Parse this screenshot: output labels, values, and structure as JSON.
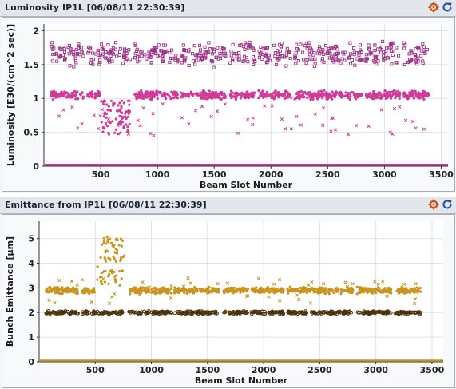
{
  "panels": [
    {
      "title": "Luminosity IP1L [06/08/11 22:30:39]",
      "icons": [
        "settings-icon",
        "refresh-icon"
      ]
    },
    {
      "title": "Emittance from IP1L [06/08/11 22:30:39]",
      "icons": [
        "settings-icon",
        "refresh-icon"
      ]
    }
  ],
  "chart_data": [
    {
      "type": "scatter",
      "title": "",
      "xlabel": "Beam Slot Number",
      "ylabel": "Luminosity [E30/(cm^2 sec)]",
      "xlim": [
        0,
        3560
      ],
      "ylim": [
        0,
        2.1
      ],
      "xticks": [
        500,
        1000,
        1500,
        2000,
        2500,
        3000,
        3500
      ],
      "yticks": [
        0,
        0.5,
        1,
        1.5,
        2
      ],
      "ytick_labels": [
        "0",
        "0.5",
        "1",
        "1.5",
        "2"
      ],
      "color": "#d03a9a",
      "marker_color": "#9c2f86",
      "trains": [
        [
          60,
          350
        ],
        [
          380,
          760
        ],
        [
          800,
          1180
        ],
        [
          1200,
          1600
        ],
        [
          1640,
          1860
        ],
        [
          1890,
          2180
        ],
        [
          2210,
          2470
        ],
        [
          2480,
          2800
        ],
        [
          2830,
          3140
        ],
        [
          3170,
          3400
        ]
      ],
      "series": [
        {
          "name": "",
          "band_center": 1.05,
          "band_halfwidth": 0.07,
          "marker": "dot"
        },
        {
          "name": "",
          "band_center": 1.65,
          "band_halfwidth": 0.2,
          "marker": "square"
        },
        {
          "name": "",
          "scatter_range": [
            0.45,
            0.92
          ],
          "marker": "x"
        }
      ],
      "special": {
        "x_range": [
          500,
          760
        ],
        "center": 0.72,
        "halfwidth": 0.25
      },
      "baseline": 0.02,
      "grid": true,
      "legend": "none"
    },
    {
      "type": "scatter",
      "title": "",
      "xlabel": "Beam Slot Number",
      "ylabel": "Bunch Emittance [µm]",
      "xlim": [
        0,
        3600
      ],
      "ylim": [
        0,
        5.7
      ],
      "xticks": [
        500,
        1000,
        1500,
        2000,
        2500,
        3000,
        3500
      ],
      "yticks": [
        0,
        1,
        2,
        3,
        4,
        5
      ],
      "ytick_labels": [
        "0",
        "1",
        "2",
        "3",
        "4",
        "5"
      ],
      "color": "#c99420",
      "marker_color": "#4a3208",
      "trains": [
        [
          60,
          350
        ],
        [
          380,
          760
        ],
        [
          800,
          1180
        ],
        [
          1200,
          1600
        ],
        [
          1640,
          1860
        ],
        [
          1890,
          2180
        ],
        [
          2210,
          2470
        ],
        [
          2480,
          2800
        ],
        [
          2830,
          3140
        ],
        [
          3170,
          3400
        ]
      ],
      "series": [
        {
          "name": "",
          "band_center": 2.9,
          "band_halfwidth": 0.15,
          "marker": "dot"
        },
        {
          "name": "",
          "band_center": 2.0,
          "band_halfwidth": 0.07,
          "marker": "ring"
        },
        {
          "name": "",
          "scatter_range": [
            2.3,
            3.4
          ],
          "marker": "x"
        }
      ],
      "special": {
        "x_range": [
          500,
          760
        ],
        "center": 4.1,
        "halfwidth": 1.0
      },
      "baseline": 0.05,
      "grid": true,
      "legend": "none"
    }
  ]
}
